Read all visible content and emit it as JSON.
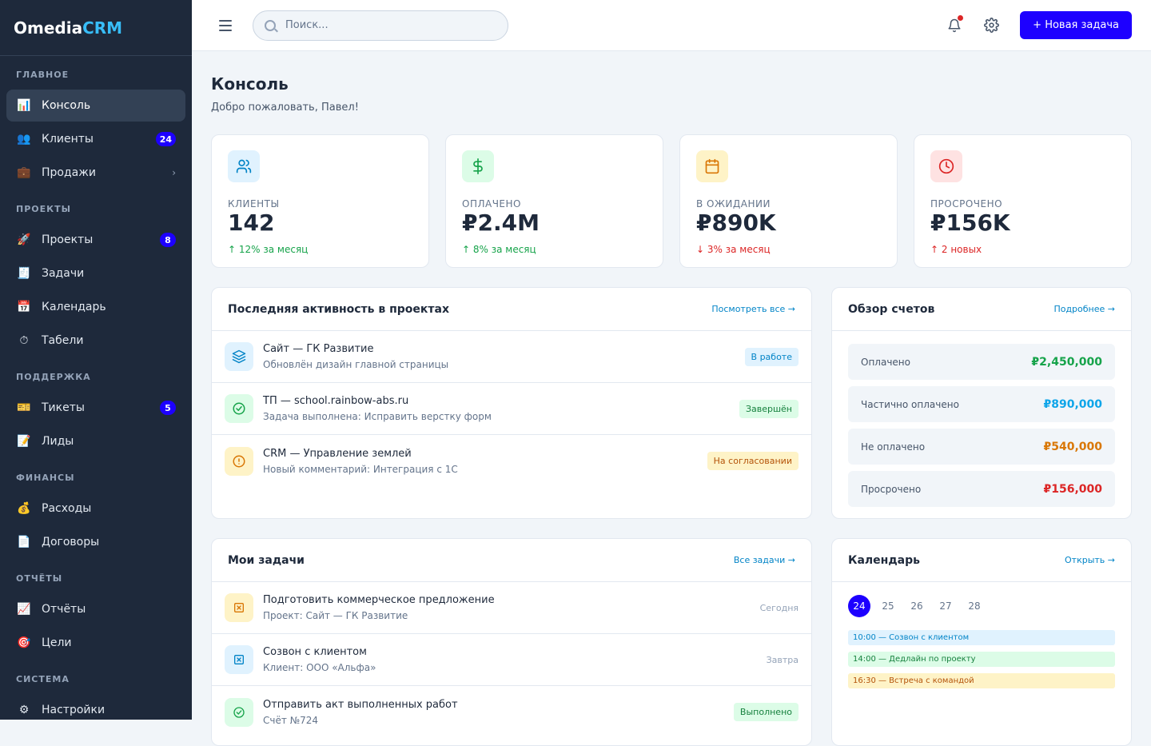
{
  "app": {
    "logo_main": "Omedia",
    "logo_accent": "CRM"
  },
  "sidebar": {
    "sections": [
      {
        "title": "ГЛАВНОЕ",
        "items": [
          {
            "label": "Консоль",
            "icon": "📊",
            "icon_name": "chart-icon",
            "active": true
          },
          {
            "label": "Клиенты",
            "icon": "👥",
            "icon_name": "users-icon",
            "badge": "24"
          },
          {
            "label": "Продажи",
            "icon": "💼",
            "icon_name": "briefcase-icon",
            "chevron": "›"
          }
        ]
      },
      {
        "title": "ПРОЕКТЫ",
        "items": [
          {
            "label": "Проекты",
            "icon": "🚀",
            "icon_name": "rocket-icon",
            "badge": "8"
          },
          {
            "label": "Задачи",
            "icon": "🧾",
            "icon_name": "receipt-icon"
          },
          {
            "label": "Календарь",
            "icon": "📅",
            "icon_name": "calendar-icon"
          },
          {
            "label": "Табели",
            "icon": "⏱",
            "icon_name": "stopwatch-icon"
          }
        ]
      },
      {
        "title": "ПОДДЕРЖКА",
        "items": [
          {
            "label": "Тикеты",
            "icon": "🎫",
            "icon_name": "ticket-icon",
            "badge": "5"
          },
          {
            "label": "Лиды",
            "icon": "📝",
            "icon_name": "memo-icon"
          }
        ]
      },
      {
        "title": "ФИНАНСЫ",
        "items": [
          {
            "label": "Расходы",
            "icon": "💰",
            "icon_name": "money-bag-icon"
          },
          {
            "label": "Договоры",
            "icon": "📄",
            "icon_name": "document-icon"
          }
        ]
      },
      {
        "title": "ОТЧЁТЫ",
        "items": [
          {
            "label": "Отчёты",
            "icon": "📈",
            "icon_name": "trend-chart-icon"
          },
          {
            "label": "Цели",
            "icon": "🎯",
            "icon_name": "target-icon"
          }
        ]
      },
      {
        "title": "СИСТЕМА",
        "items": [
          {
            "label": "Настройки",
            "icon": "⚙",
            "icon_name": "gear-icon"
          }
        ]
      }
    ]
  },
  "topbar": {
    "search_placeholder": "Поиск...",
    "new_task_label": "+ Новая задача"
  },
  "page": {
    "title": "Консоль",
    "subtitle": "Добро пожаловать, Павел!"
  },
  "stats": [
    {
      "label": "КЛИЕНТЫ",
      "value": "142",
      "trend": "↑ 12% за месяц",
      "trend_color": "#16a34a",
      "icon_name": "users-icon",
      "icon_bg": "#e0f2fe",
      "icon_color": "#0284c7"
    },
    {
      "label": "ОПЛАЧЕНО",
      "value": "₽2.4M",
      "trend": "↑ 8% за месяц",
      "trend_color": "#16a34a",
      "icon_name": "dollar-icon",
      "icon_bg": "#dcfce7",
      "icon_color": "#16a34a"
    },
    {
      "label": "В ОЖИДАНИИ",
      "value": "₽890K",
      "trend": "↓ 3% за месяц",
      "trend_color": "#dc2626",
      "icon_name": "calendar-icon",
      "icon_bg": "#fef3c7",
      "icon_color": "#d97706"
    },
    {
      "label": "ПРОСРОЧЕНО",
      "value": "₽156K",
      "trend": "↑ 2 новых",
      "trend_color": "#dc2626",
      "icon_name": "clock-icon",
      "icon_bg": "#fee2e2",
      "icon_color": "#dc2626"
    }
  ],
  "activity": {
    "title": "Последняя активность в проектах",
    "link": "Посмотреть все →",
    "items": [
      {
        "title": "Сайт — ГК Развитие",
        "sub": "Обновлён дизайн главной страницы",
        "status": "В работе",
        "status_bg": "#e0f2fe",
        "status_color": "#0284c7",
        "icon_name": "layers-icon",
        "icon_bg": "#e0f2fe",
        "icon_color": "#0284c7"
      },
      {
        "title": "ТП — school.rainbow-abs.ru",
        "sub": "Задача выполнена: Исправить верстку форм",
        "status": "Завершён",
        "status_bg": "#dcfce7",
        "status_color": "#15803d",
        "icon_name": "check-circle-icon",
        "icon_bg": "#dcfce7",
        "icon_color": "#16a34a"
      },
      {
        "title": "CRM — Управление землей",
        "sub": "Новый комментарий: Интеграция с 1С",
        "status": "На согласовании",
        "status_bg": "#fef3c7",
        "status_color": "#b45309",
        "icon_name": "alert-circle-icon",
        "icon_bg": "#fef3c7",
        "icon_color": "#d97706"
      }
    ]
  },
  "invoices": {
    "title": "Обзор счетов",
    "link": "Подробнее →",
    "rows": [
      {
        "label": "Оплачено",
        "value": "₽2,450,000",
        "color": "#16a34a"
      },
      {
        "label": "Частично оплачено",
        "value": "₽890,000",
        "color": "#0ea5e9"
      },
      {
        "label": "Не оплачено",
        "value": "₽540,000",
        "color": "#d97706"
      },
      {
        "label": "Просрочено",
        "value": "₽156,000",
        "color": "#dc2626"
      }
    ]
  },
  "tasks": {
    "title": "Мои задачи",
    "link": "Все задачи →",
    "items": [
      {
        "title": "Подготовить коммерческое предложение",
        "sub": "Проект: Сайт — ГК Развитие",
        "meta": "Сегодня",
        "icon_name": "task-square-icon",
        "icon_bg": "#fef3c7",
        "icon_color": "#d97706"
      },
      {
        "title": "Созвон с клиентом",
        "sub": "Клиент: ООО «Альфа»",
        "meta": "Завтра",
        "icon_name": "task-square-icon",
        "icon_bg": "#e0f2fe",
        "icon_color": "#0284c7"
      },
      {
        "title": "Отправить акт выполненных работ",
        "sub": "Счёт №724",
        "meta": "Выполнено",
        "meta_pill": true,
        "icon_name": "check-circle-icon",
        "icon_bg": "#dcfce7",
        "icon_color": "#16a34a"
      }
    ]
  },
  "calendar": {
    "title": "Календарь",
    "link": "Открыть →",
    "days": [
      "24",
      "25",
      "26",
      "27",
      "28"
    ],
    "active_day": "24",
    "events": [
      {
        "text": "10:00 — Созвон с клиентом",
        "bg": "#e0f2fe",
        "color": "#0284c7"
      },
      {
        "text": "14:00 — Дедлайн по проекту",
        "bg": "#dcfce7",
        "color": "#15803d"
      },
      {
        "text": "16:30 — Встреча с командой",
        "bg": "#fef3c7",
        "color": "#b45309"
      }
    ]
  }
}
